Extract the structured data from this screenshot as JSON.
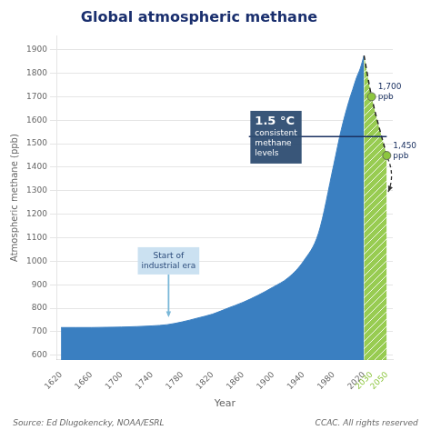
{
  "chart_data": {
    "type": "area",
    "title": "Global atmospheric methane",
    "x_label": "Year",
    "y_label": "Atmospheric methane (ppb)",
    "series": [
      {
        "x": [
          1620,
          1640,
          1660,
          1680,
          1700,
          1720,
          1740,
          1760,
          1780,
          1800,
          1820,
          1840,
          1860,
          1880,
          1900,
          1920,
          1940,
          1960,
          1980,
          1990,
          2000,
          2005,
          2010,
          2015,
          2020
        ],
        "values": [
          718,
          718,
          718,
          719,
          720,
          722,
          725,
          730,
          742,
          758,
          775,
          800,
          825,
          855,
          890,
          930,
          1000,
          1120,
          1410,
          1560,
          1680,
          1730,
          1780,
          1820,
          1875
        ],
        "color": "#3a7fc1"
      },
      {
        "x": [
          2020,
          2030,
          2050
        ],
        "values": [
          1875,
          1700,
          1450
        ],
        "color": "#8dc63f",
        "line_style": "dashed"
      }
    ],
    "xlim": [
      1615,
      2058
    ],
    "xticks": [
      1620,
      1660,
      1700,
      1740,
      1780,
      1820,
      1860,
      1900,
      1940,
      1980,
      2020,
      2030,
      2050
    ],
    "ylim": [
      580,
      1960
    ],
    "yticks": [
      600,
      700,
      800,
      900,
      1000,
      1100,
      1200,
      1300,
      1400,
      1500,
      1600,
      1700,
      1800,
      1900
    ],
    "grid": "y",
    "reference_lines": [
      {
        "x": [
          1868,
          2050
        ],
        "y": 1530
      }
    ],
    "annotations": [
      {
        "text": "Start of\nindustrial era",
        "x": 1762,
        "y": 762,
        "arrow": true
      },
      {
        "text": "1.5 °C\nconsistent\nmethane\nlevels",
        "x": 1870,
        "y": 1640
      },
      {
        "text": "1,700\nppb",
        "x": 2030,
        "y": 1700,
        "marker": "circle"
      },
      {
        "text": "1,450\nppb",
        "x": 2050,
        "y": 1450,
        "marker": "circle"
      }
    ],
    "arrows": [
      {
        "x": [
          2051,
          2052
        ],
        "y": [
          1440,
          1295
        ],
        "line_style": "dashed"
      }
    ],
    "footnotes": [
      "Source: Ed Dlugokencky, NOAA/ESRL",
      "CCAC. All rights reserved"
    ]
  }
}
